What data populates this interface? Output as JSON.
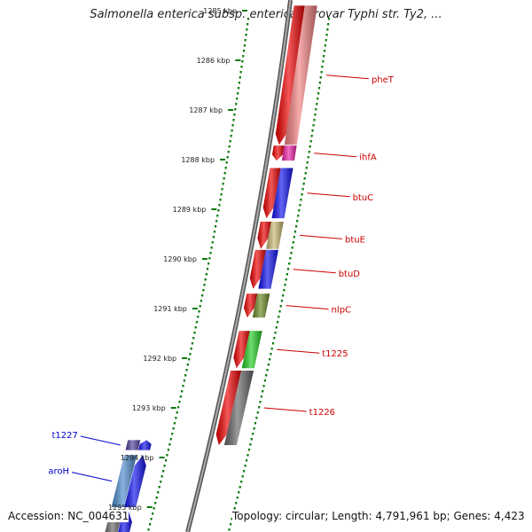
{
  "title": "Salmonella enterica subsp. enterica serovar Typhi str. Ty2, ...",
  "footer": {
    "accession": "Accession: NC_004631",
    "summary": "Topology: circular; Length: 4,791,961 bp; Genes: 4,423"
  },
  "colors": {
    "background": "#ffffff",
    "backbone": "#777777",
    "ticks": "#0a7a0a",
    "forward_strand_label": "#cc0000",
    "reverse_strand_label": "#0000cc",
    "cog_red": "#ee0000",
    "cog_blue": "#1010ee",
    "cog_pink": "#f28080",
    "cog_magenta": "#ee22aa",
    "cog_khaki": "#c8b870",
    "cog_olive": "#6a8a22",
    "cog_green": "#22cc22",
    "cog_gray": "#666666",
    "cog_steelblue": "#4a8acc",
    "cog_purple": "#50409a"
  },
  "ruler": {
    "unit": "kbp",
    "ticks": [
      {
        "position": 1285,
        "label": "1285 kbp"
      },
      {
        "position": 1286,
        "label": "1286 kbp"
      },
      {
        "position": 1287,
        "label": "1287 kbp"
      },
      {
        "position": 1288,
        "label": "1288 kbp"
      },
      {
        "position": 1289,
        "label": "1289 kbp"
      },
      {
        "position": 1290,
        "label": "1290 kbp"
      },
      {
        "position": 1291,
        "label": "1291 kbp"
      },
      {
        "position": 1292,
        "label": "1292 kbp"
      },
      {
        "position": 1293,
        "label": "1293 kbp"
      },
      {
        "position": 1294,
        "label": "1294 kbp"
      },
      {
        "position": 1295,
        "label": "1295 kbp"
      }
    ]
  },
  "genes": [
    {
      "name": "pheT",
      "strand": "forward",
      "start": 1284.9,
      "end": 1287.7,
      "cog_color": "#f28080"
    },
    {
      "name": "ihfA",
      "strand": "forward",
      "start": 1287.72,
      "end": 1288.02,
      "cog_color": "#ee22aa"
    },
    {
      "name": "btuC",
      "strand": "forward",
      "start": 1288.17,
      "end": 1289.18,
      "cog_color": "#1010ee"
    },
    {
      "name": "btuE",
      "strand": "forward",
      "start": 1289.25,
      "end": 1289.8,
      "cog_color": "#c8b870"
    },
    {
      "name": "btuD",
      "strand": "forward",
      "start": 1289.82,
      "end": 1290.6,
      "cog_color": "#1010ee"
    },
    {
      "name": "nlpC",
      "strand": "forward",
      "start": 1290.7,
      "end": 1291.18,
      "cog_color": "#6a8a22"
    },
    {
      "name": "t1225",
      "strand": "forward",
      "start": 1291.45,
      "end": 1292.2,
      "cog_color": "#22cc22"
    },
    {
      "name": "t1226",
      "strand": "forward",
      "start": 1292.25,
      "end": 1293.75,
      "cog_color": "#666666"
    },
    {
      "name": "t1227",
      "strand": "reverse",
      "start": 1293.65,
      "end": 1293.85,
      "cog_color": "#50409a"
    },
    {
      "name": "aroH",
      "strand": "reverse",
      "start": 1293.95,
      "end": 1295.0,
      "cog_color": "#4a8acc"
    },
    {
      "name": "",
      "strand": "reverse",
      "start": 1295.1,
      "end": 1295.6,
      "cog_color": "#666666"
    }
  ]
}
